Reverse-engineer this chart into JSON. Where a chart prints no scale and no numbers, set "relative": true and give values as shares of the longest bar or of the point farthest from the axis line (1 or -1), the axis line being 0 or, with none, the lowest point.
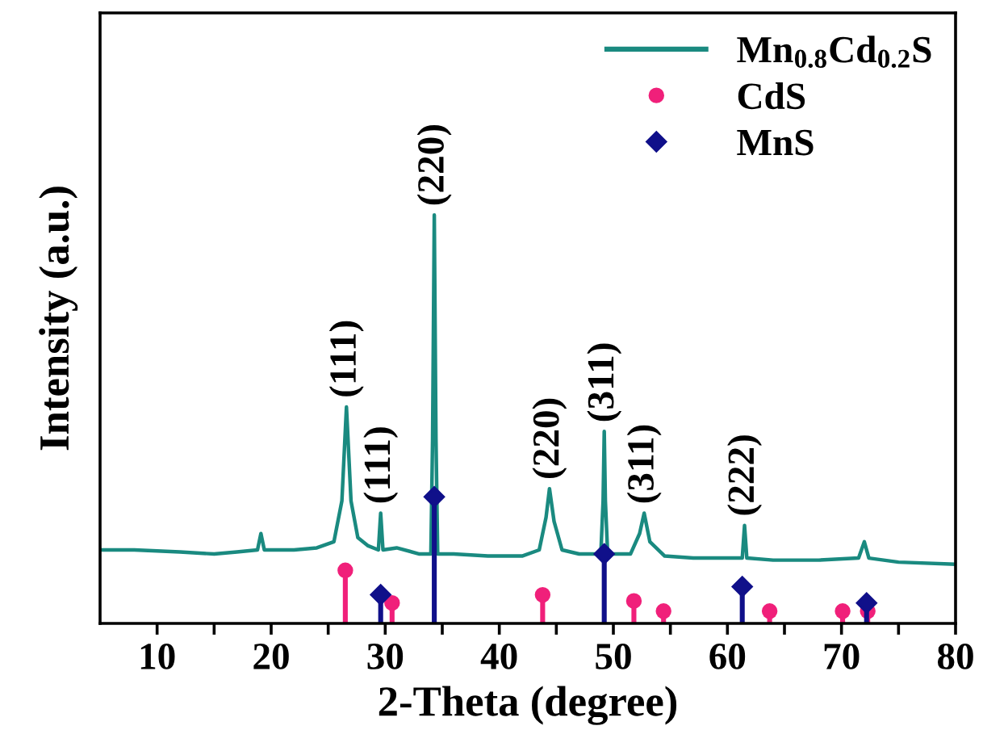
{
  "chart_data": {
    "type": "line",
    "relative": true,
    "xlabel": "2-Theta (degree)",
    "ylabel": "Intensity (a.u.)",
    "xlim": [
      5,
      80
    ],
    "xticks": [
      10,
      {
        "value": 15,
        "label": null
      },
      20,
      {
        "value": 25,
        "label": null
      },
      30,
      {
        "value": 35,
        "label": null
      },
      40,
      {
        "value": 45,
        "label": null
      },
      50,
      {
        "value": 55,
        "label": null
      },
      60,
      {
        "value": 65,
        "label": null
      },
      70,
      {
        "value": 75,
        "label": null
      },
      80
    ],
    "tick_labels": "x",
    "grid": false,
    "legend": "top right",
    "series": [
      {
        "name": "Mn$_{0.8}$Cd$_{0.2}$S",
        "color": "#1a8a80",
        "marker": "none",
        "line_style": "solid",
        "x": [
          5,
          8,
          12,
          15,
          17,
          18.8,
          19.1,
          19.4,
          22,
          24,
          25.5,
          26.2,
          26.6,
          27.0,
          27.6,
          28.5,
          29.4,
          29.6,
          29.8,
          31,
          33,
          34.0,
          34.15,
          34.3,
          34.45,
          34.6,
          36,
          39,
          42,
          43.5,
          44.1,
          44.4,
          44.8,
          45.5,
          47,
          48.9,
          49.1,
          49.2,
          49.3,
          49.5,
          51.5,
          52.3,
          52.7,
          53.2,
          54.5,
          57,
          60,
          61.3,
          61.5,
          61.7,
          64,
          68,
          71.5,
          72,
          72.4,
          75,
          80
        ],
        "values": [
          0.18,
          0.18,
          0.175,
          0.17,
          0.175,
          0.18,
          0.22,
          0.18,
          0.18,
          0.185,
          0.2,
          0.3,
          0.53,
          0.3,
          0.21,
          0.19,
          0.18,
          0.27,
          0.18,
          0.185,
          0.17,
          0.17,
          0.45,
          1.0,
          0.45,
          0.17,
          0.17,
          0.165,
          0.165,
          0.18,
          0.26,
          0.33,
          0.25,
          0.18,
          0.17,
          0.17,
          0.3,
          0.47,
          0.3,
          0.17,
          0.17,
          0.22,
          0.27,
          0.2,
          0.165,
          0.16,
          0.16,
          0.16,
          0.24,
          0.16,
          0.155,
          0.155,
          0.16,
          0.2,
          0.16,
          0.15,
          0.145
        ]
      },
      {
        "name": "CdS",
        "type": "lollipop",
        "color": "#f0207a",
        "marker": "circle",
        "x": [
          26.5,
          30.6,
          43.8,
          51.8,
          54.4,
          63.7,
          70.1,
          72.3
        ],
        "values": [
          0.13,
          0.05,
          0.07,
          0.055,
          0.03,
          0.03,
          0.03,
          0.03
        ]
      },
      {
        "name": "MnS",
        "type": "lollipop",
        "color": "#10108a",
        "marker": "diamond",
        "x": [
          29.6,
          34.3,
          49.2,
          61.3,
          72.2
        ],
        "values": [
          0.07,
          0.31,
          0.17,
          0.09,
          0.05
        ]
      }
    ],
    "annotations": [
      {
        "text": "(111)",
        "x": 26.6,
        "y": 0.53
      },
      {
        "text": "(111)",
        "x": 29.6,
        "y": 0.27
      },
      {
        "text": "(220)",
        "x": 34.3,
        "y": 1.0
      },
      {
        "text": "(220)",
        "x": 44.4,
        "y": 0.33
      },
      {
        "text": "(311)",
        "x": 49.2,
        "y": 0.47
      },
      {
        "text": "(311)",
        "x": 52.7,
        "y": 0.27
      },
      {
        "text": "(222)",
        "x": 61.5,
        "y": 0.24
      }
    ]
  }
}
